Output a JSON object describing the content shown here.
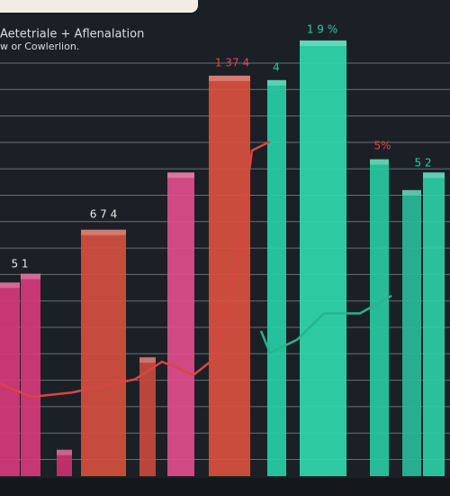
{
  "chart_data": {
    "type": "bar",
    "title": "Aetetriale + Aflenalation",
    "subtitle": "w or Cowlerlion.",
    "categories": [
      null,
      null,
      null,
      null,
      null,
      null,
      null,
      null,
      null,
      null,
      null,
      null
    ],
    "values": [
      44,
      46,
      6,
      56,
      27,
      69,
      91,
      90,
      99,
      72,
      65,
      69
    ],
    "colors": [
      "#d6397a",
      "#d6397a",
      "#c8336f",
      "#d4503f",
      "#c84a3d",
      "#e04d8a",
      "#d9503f",
      "#27cfa6",
      "#2fd9ac",
      "#29c9a1",
      "#26bb98",
      "#2bcfa4"
    ],
    "ylim": [
      0,
      100
    ],
    "annotations": [
      "5 1",
      "6 7 4",
      "1 37 4",
      "4",
      "1 9 %",
      "5%",
      "5 2"
    ],
    "annotation_colors": [
      "#e8e8e8",
      "#e8e8e8",
      "#e0434a",
      "#27cfa6",
      "#27cfa6",
      "#e0434a",
      "#27cfa6"
    ],
    "line": {
      "x": [
        0,
        7,
        16,
        30,
        36,
        43,
        48,
        53,
        56,
        60
      ],
      "values": [
        21,
        18,
        19,
        22,
        26,
        23,
        27,
        51,
        74,
        76
      ],
      "color": "#d84545"
    },
    "line2": {
      "x": [
        58,
        60,
        66,
        72,
        80,
        87
      ],
      "values": [
        33,
        28,
        31,
        37,
        37,
        41
      ],
      "color": "#26b48f"
    },
    "xlim": [
      0,
      100
    ]
  }
}
